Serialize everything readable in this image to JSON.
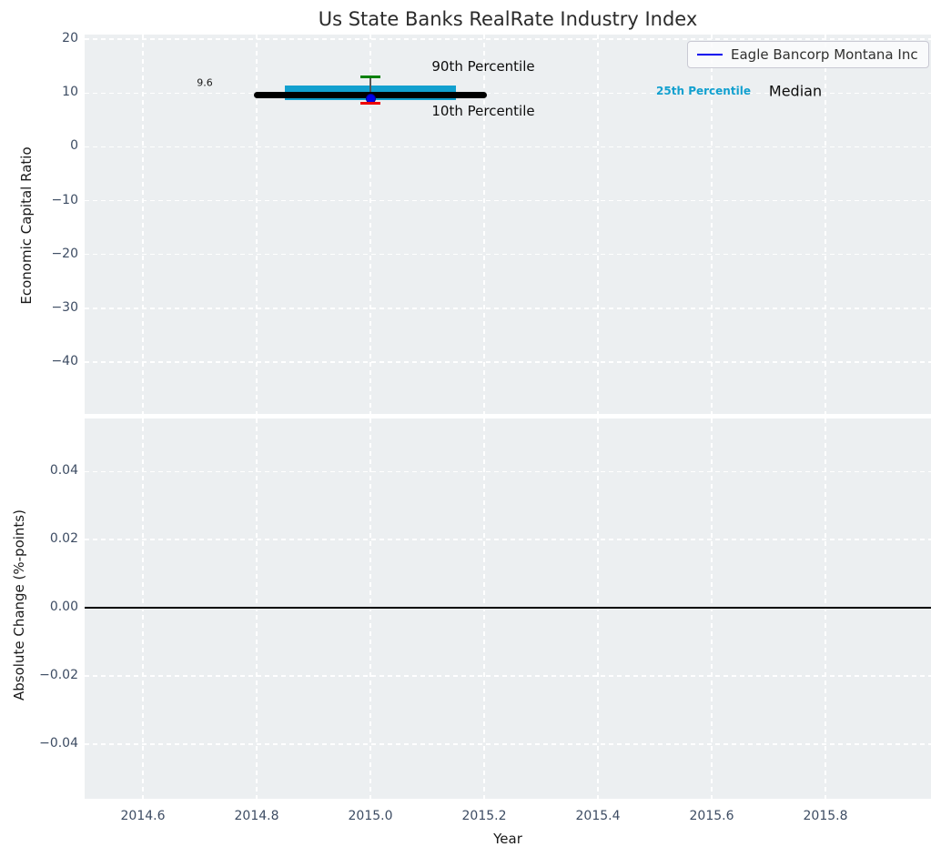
{
  "title": "Us State Banks RealRate Industry Index",
  "legend": {
    "label": "Eagle Bancorp Montana Inc"
  },
  "annotations": {
    "p90": "90th Percentile",
    "p10": "10th Percentile",
    "p25": "25th Percentile",
    "median": "Median",
    "median_value_label": "9.6"
  },
  "axes": {
    "top": {
      "ylabel": "Economic Capital Ratio"
    },
    "bottom": {
      "ylabel": "Absolute Change (%-points)",
      "xlabel": "Year"
    }
  },
  "colors": {
    "figure_background": "#ffffff",
    "axes_background": "#eceff1",
    "grid": "#ffffff",
    "percentile_band": "#12a0cf",
    "median": "#000000",
    "p90_cap": "#008000",
    "p10_cap": "#ee0000",
    "company_line": "#0000ee",
    "company_dot_edge": "#000099",
    "whisker": "#555555",
    "zero_line": "#000000",
    "tick_label": "#3d4c63"
  },
  "chart_data": [
    {
      "type": "boxplot-timeseries",
      "title": "Us State Banks RealRate Industry Index",
      "ylabel": "Economic Capital Ratio",
      "xlim": [
        2014.4976,
        2015.9856
      ],
      "ylim": [
        -49.63,
        20.85
      ],
      "grid": true,
      "legend_position": "upper right",
      "legend_entries": [
        "Eagle Bancorp Montana Inc"
      ],
      "xticks": [
        {
          "v": 2014.6,
          "label": "2014.6"
        },
        {
          "v": 2014.8,
          "label": "2014.8"
        },
        {
          "v": 2015.0,
          "label": "2015.0"
        },
        {
          "v": 2015.2,
          "label": "2015.2"
        },
        {
          "v": 2015.4,
          "label": "2015.4"
        },
        {
          "v": 2015.6,
          "label": "2015.6"
        },
        {
          "v": 2015.8,
          "label": "2015.8"
        }
      ],
      "yticks": [
        {
          "v": 20,
          "label": "20"
        },
        {
          "v": 10,
          "label": "10"
        },
        {
          "v": 0,
          "label": "0"
        },
        {
          "v": -10,
          "label": "−10"
        },
        {
          "v": -20,
          "label": "−20"
        },
        {
          "v": -30,
          "label": "−30"
        },
        {
          "v": -40,
          "label": "−40"
        }
      ],
      "box": {
        "x": 2015.0,
        "p90": 13.0,
        "p75": 11.4,
        "median": 9.6,
        "p25": 8.7,
        "p10": 8.1,
        "median_label": "9.6",
        "company": {
          "name": "Eagle Bancorp Montana Inc",
          "value": 8.9
        },
        "box_x_range": [
          2014.85,
          2015.15
        ],
        "median_x_range": [
          2014.795,
          2015.205
        ],
        "cap_x_range": [
          2014.982,
          2015.018
        ]
      }
    },
    {
      "type": "line",
      "ylabel": "Absolute Change (%-points)",
      "xlabel": "Year",
      "xlim": [
        2014.4976,
        2015.9856
      ],
      "ylim": [
        -0.056,
        0.0555
      ],
      "grid": true,
      "zero_line": 0.0,
      "xticks": [
        {
          "v": 2014.6,
          "label": "2014.6"
        },
        {
          "v": 2014.8,
          "label": "2014.8"
        },
        {
          "v": 2015.0,
          "label": "2015.0"
        },
        {
          "v": 2015.2,
          "label": "2015.2"
        },
        {
          "v": 2015.4,
          "label": "2015.4"
        },
        {
          "v": 2015.6,
          "label": "2015.6"
        },
        {
          "v": 2015.8,
          "label": "2015.8"
        }
      ],
      "yticks": [
        {
          "v": 0.04,
          "label": "0.04"
        },
        {
          "v": 0.02,
          "label": "0.02"
        },
        {
          "v": 0.0,
          "label": "0.00"
        },
        {
          "v": -0.02,
          "label": "−0.02"
        },
        {
          "v": -0.04,
          "label": "−0.04"
        }
      ]
    }
  ]
}
